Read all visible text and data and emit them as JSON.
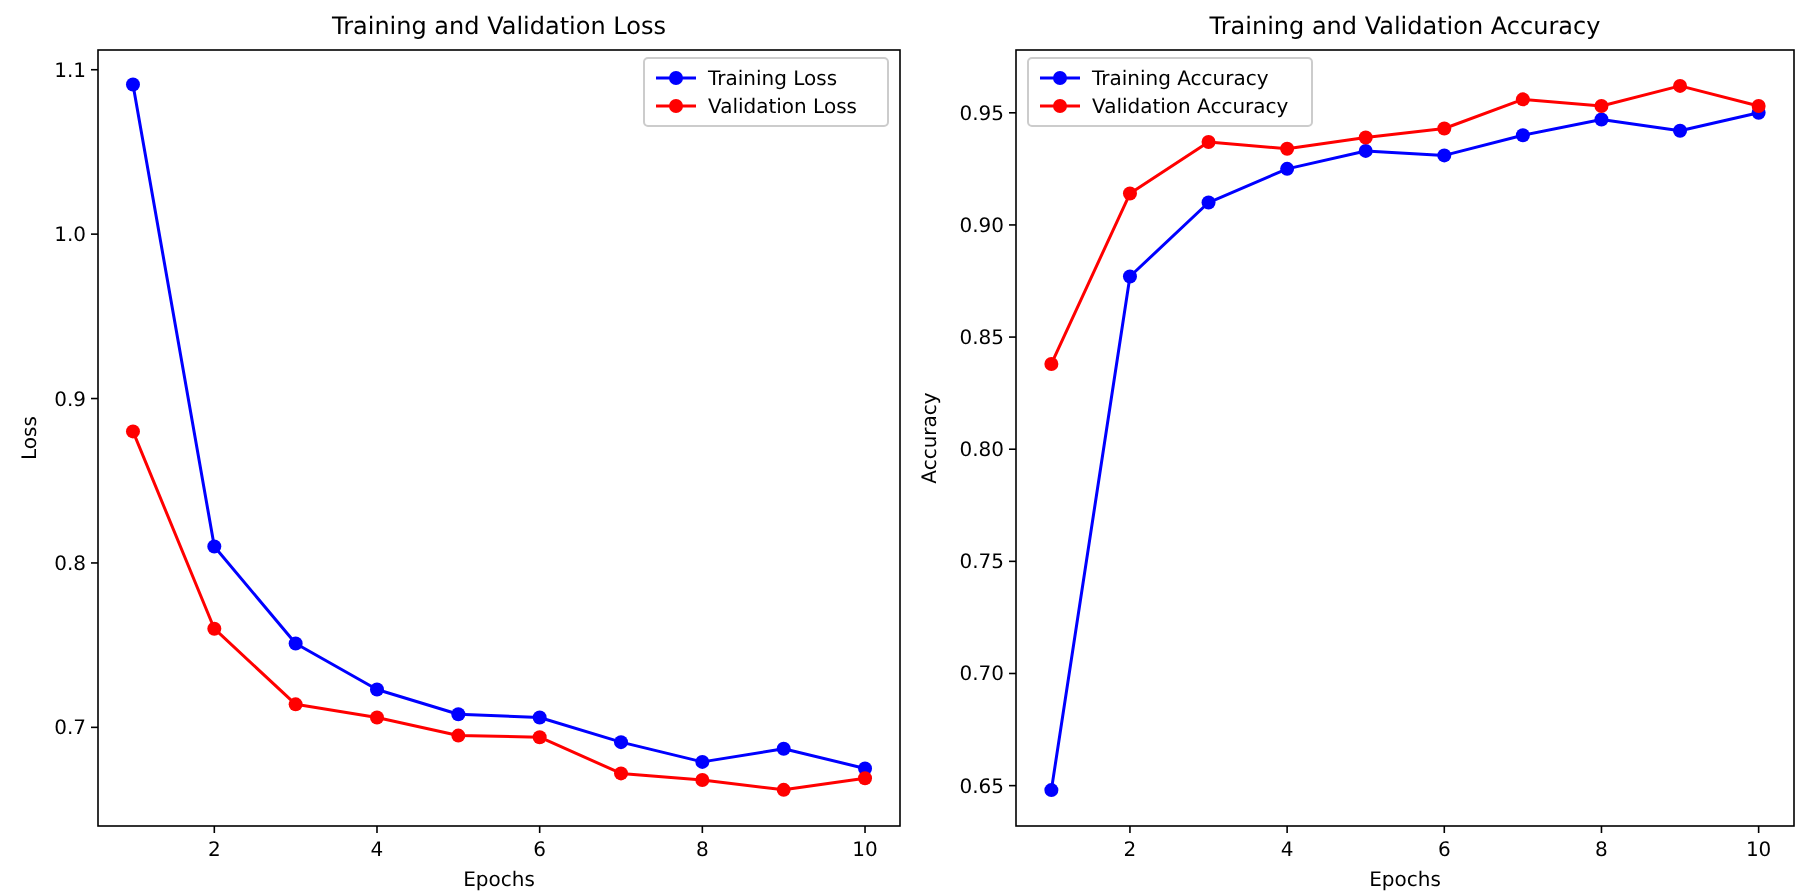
{
  "chart_data": [
    {
      "type": "line",
      "title": "Training and Validation Loss",
      "xlabel": "Epochs",
      "ylabel": "Loss",
      "x": [
        1,
        2,
        3,
        4,
        5,
        6,
        7,
        8,
        9,
        10
      ],
      "xlim": [
        0.57,
        10.43
      ],
      "xticks": [
        2,
        4,
        6,
        8,
        10
      ],
      "ylim": [
        0.64,
        1.112
      ],
      "yticks": [
        {
          "value": 0.7,
          "label": "0.7"
        },
        {
          "value": 0.8,
          "label": "0.8"
        },
        {
          "value": 0.9,
          "label": "0.9"
        },
        {
          "value": 1.0,
          "label": "1.0"
        },
        {
          "value": 1.1,
          "label": "1.1"
        }
      ],
      "marker": "circle",
      "line_style": "solid",
      "grid": false,
      "legend": "top right",
      "series": [
        {
          "name": "Training Loss",
          "color": "#0000ff",
          "values": [
            1.091,
            0.81,
            0.751,
            0.723,
            0.708,
            0.706,
            0.691,
            0.679,
            0.687,
            0.675
          ]
        },
        {
          "name": "Validation Loss",
          "color": "#ff0000",
          "values": [
            0.88,
            0.76,
            0.714,
            0.706,
            0.695,
            0.694,
            0.672,
            0.668,
            0.662,
            0.669
          ]
        }
      ]
    },
    {
      "type": "line",
      "title": "Training and Validation Accuracy",
      "xlabel": "Epochs",
      "ylabel": "Accuracy",
      "x": [
        1,
        2,
        3,
        4,
        5,
        6,
        7,
        8,
        9,
        10
      ],
      "xlim": [
        0.55,
        10.45
      ],
      "xticks": [
        2,
        4,
        6,
        8,
        10
      ],
      "ylim": [
        0.632,
        0.978
      ],
      "yticks": [
        {
          "value": 0.65,
          "label": "0.65"
        },
        {
          "value": 0.7,
          "label": "0.70"
        },
        {
          "value": 0.75,
          "label": "0.75"
        },
        {
          "value": 0.8,
          "label": "0.80"
        },
        {
          "value": 0.85,
          "label": "0.85"
        },
        {
          "value": 0.9,
          "label": "0.90"
        },
        {
          "value": 0.95,
          "label": "0.95"
        }
      ],
      "marker": "circle",
      "line_style": "solid",
      "grid": false,
      "legend": "top left",
      "series": [
        {
          "name": "Training Accuracy",
          "color": "#0000ff",
          "values": [
            0.648,
            0.877,
            0.91,
            0.925,
            0.933,
            0.931,
            0.94,
            0.947,
            0.942,
            0.95
          ]
        },
        {
          "name": "Validation Accuracy",
          "color": "#ff0000",
          "values": [
            0.838,
            0.914,
            0.937,
            0.934,
            0.939,
            0.943,
            0.956,
            0.953,
            0.962,
            0.953
          ]
        }
      ]
    }
  ]
}
